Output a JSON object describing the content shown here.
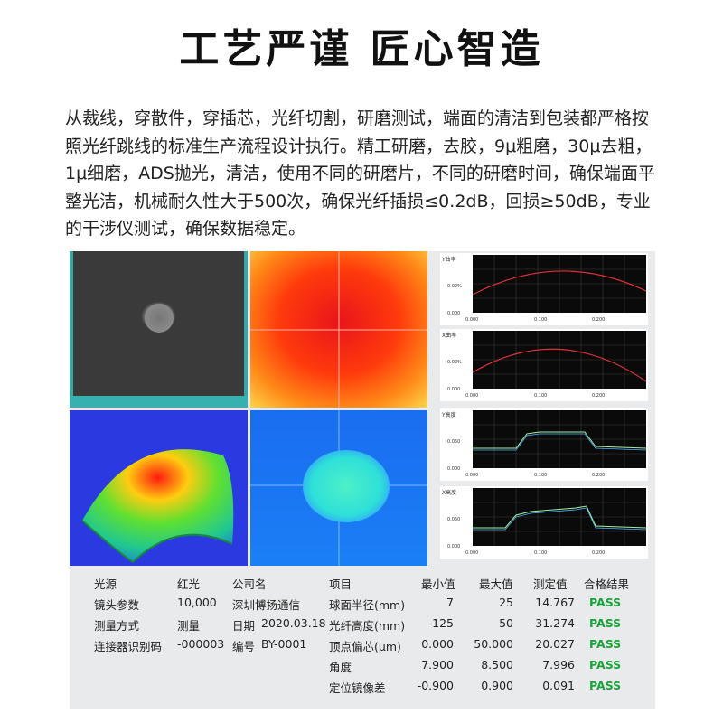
{
  "title": "工艺严谨 匠心智造",
  "paragraph": "从裁线，穿散件，穿插芯，光纤切割，研磨测试，端面的清洁到包装都严格按照光纤跳线的标准生产流程设计执行。精工研磨，去胶，9μ粗磨，30μ去粗，1μ细磨，ADS抛光，清洁，使用不同的研磨片，不同的研磨时间，确保端面平整光洁，机械耐久性大于500次，确保光纤插损≤0.2dB，回损≥50dB，专业的干涉仪测试，确保数据稳定。",
  "graphs": [
    {
      "label": "Y曲率",
      "y_tick": "0.02%",
      "y_zero": "0.000",
      "x_ticks": [
        "0.000",
        "0.100",
        "0.200"
      ]
    },
    {
      "label": "X曲率",
      "y_tick": "0.02%",
      "y_zero": "0.000",
      "x_ticks": [
        "0.000",
        "0.100",
        "0.200"
      ]
    },
    {
      "label": "Y高度",
      "y_tick": "0.050",
      "y_zero": "0.000",
      "x_ticks": [
        "0.000",
        "0.100",
        "0.200"
      ]
    },
    {
      "label": "X高度",
      "y_tick": "0.050",
      "y_zero": "0.000",
      "x_ticks": [
        "0.000",
        "0.100",
        "0.200"
      ]
    }
  ],
  "left_info": [
    {
      "k": "光源",
      "v": "红光"
    },
    {
      "k": "镜头参数",
      "v": "10,000"
    },
    {
      "k": "测量方式",
      "v": "测量"
    },
    {
      "k": "连接器识别码",
      "v": "-000003"
    }
  ],
  "mid_info": [
    {
      "k": "公司名",
      "v": ""
    },
    {
      "k": "",
      "v": "深圳博扬通信"
    },
    {
      "k": "日期",
      "v": "2020.03.18"
    },
    {
      "k": "编号",
      "v": "BY-0001"
    }
  ],
  "table": {
    "headers": [
      "项目",
      "最小值",
      "最大值",
      "测定值",
      "合格结果"
    ],
    "rows": [
      [
        "球面半径(mm)",
        "7",
        "25",
        "14.767",
        "PASS"
      ],
      [
        "光纤高度(mm)",
        "-125",
        "50",
        "-31.274",
        "PASS"
      ],
      [
        "顶点偏芯(μm)",
        "0.000",
        "50.000",
        "20.027",
        "PASS"
      ],
      [
        "角度",
        "7.900",
        "8.500",
        "7.996",
        "PASS"
      ],
      [
        "定位镜像差",
        "-0.900",
        "0.900",
        "0.091",
        "PASS"
      ]
    ]
  },
  "colors": {
    "pass": "#1aa33a",
    "panel_bg": "#e9eaec",
    "graph_bg": "#0a0a0a"
  }
}
